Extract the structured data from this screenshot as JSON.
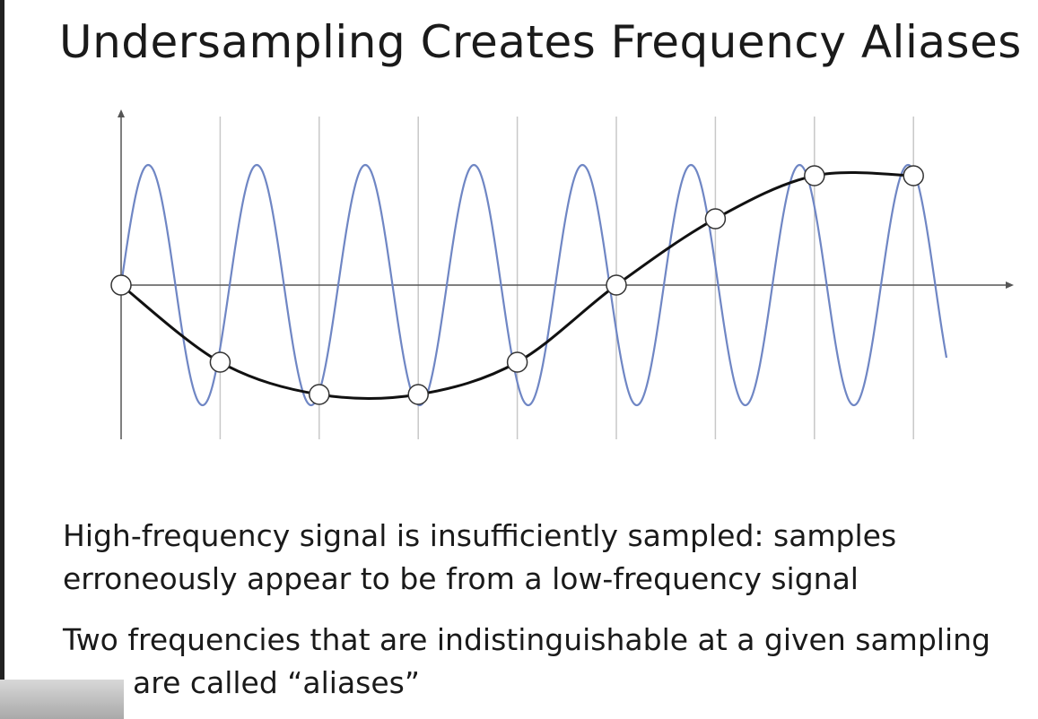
{
  "slide": {
    "title": "Undersampling Creates Frequency Aliases",
    "bullets": [
      {
        "lines": [
          "High-frequency signal is insufficiently sampled: samples",
          "erroneously appear to be from a low-frequency signal"
        ]
      },
      {
        "lines": [
          "Two frequencies that are indistinguishable at a given sampling",
          "are called “aliases”"
        ]
      }
    ]
  }
}
